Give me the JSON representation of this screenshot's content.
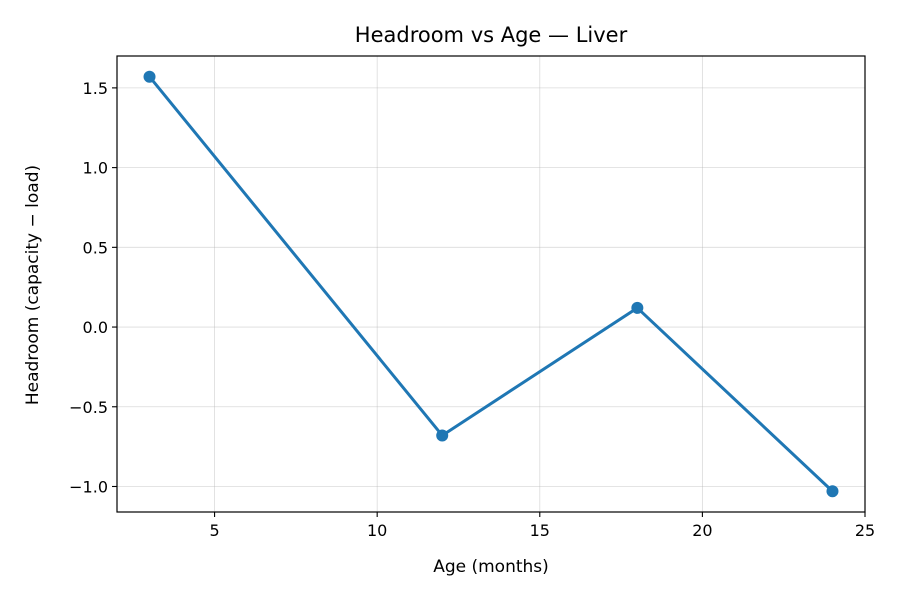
{
  "chart_data": {
    "type": "line",
    "title": "Headroom vs Age — Liver",
    "xlabel": "Age (months)",
    "ylabel": "Headroom (capacity − load)",
    "xlim": [
      2.0,
      25.0
    ],
    "ylim": [
      -1.16,
      1.7
    ],
    "xticks": [
      5,
      10,
      15,
      20,
      25
    ],
    "xtick_labels": [
      "5",
      "10",
      "15",
      "20",
      "25"
    ],
    "yticks": [
      -1.0,
      -0.5,
      0.0,
      0.5,
      1.0,
      1.5
    ],
    "ytick_labels": [
      "−1.0",
      "−0.5",
      "0.0",
      "0.5",
      "1.0",
      "1.5"
    ],
    "grid": true,
    "series": [
      {
        "color": "#1f77b4",
        "marker": "circle",
        "x": [
          3,
          12,
          18,
          24
        ],
        "y": [
          1.57,
          -0.68,
          0.12,
          -1.03
        ]
      }
    ]
  }
}
